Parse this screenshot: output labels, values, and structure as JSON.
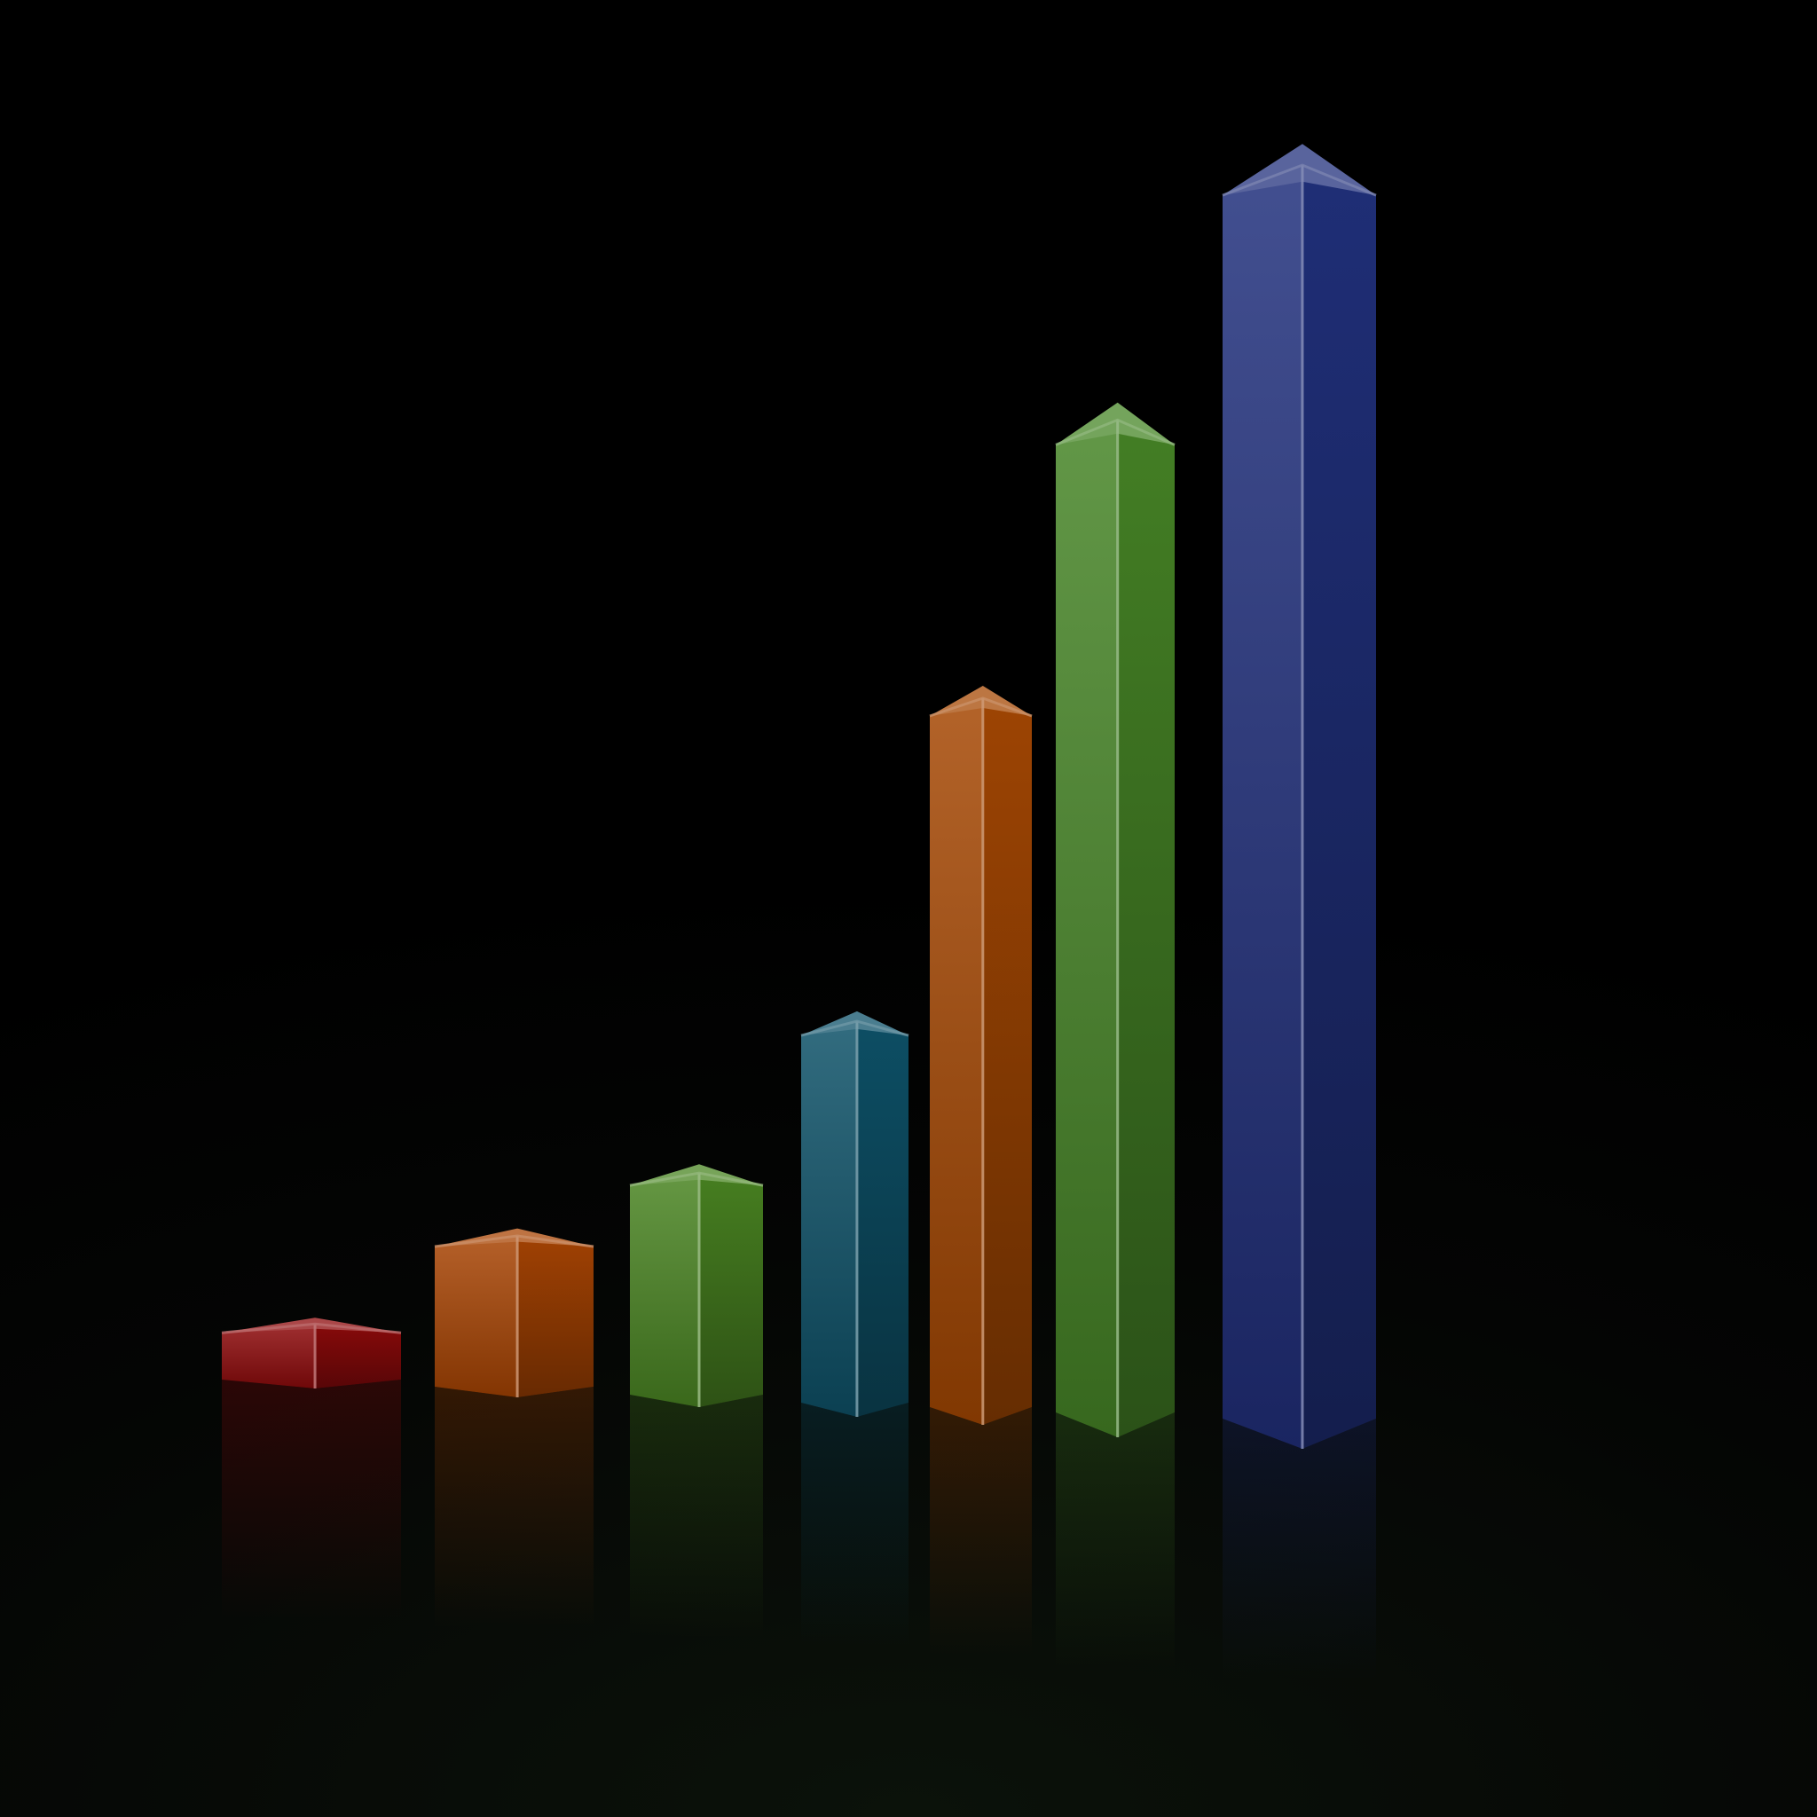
{
  "chart_data": {
    "type": "bar",
    "style": "3d-extruded",
    "background": "#000000",
    "axes_visible": false,
    "grid": false,
    "legend": "none",
    "title": "",
    "xlabel": "",
    "ylabel": "",
    "categories": [
      "",
      "",
      "",
      "",
      "",
      "",
      ""
    ],
    "values": [
      8,
      20,
      29,
      49,
      90,
      126,
      159
    ],
    "ylim": [
      0,
      160
    ],
    "colors": [
      "#8e0a0b",
      "#a84403",
      "#4a8522",
      "#0e5269",
      "#a54803",
      "#468526",
      "#21307c"
    ]
  }
}
